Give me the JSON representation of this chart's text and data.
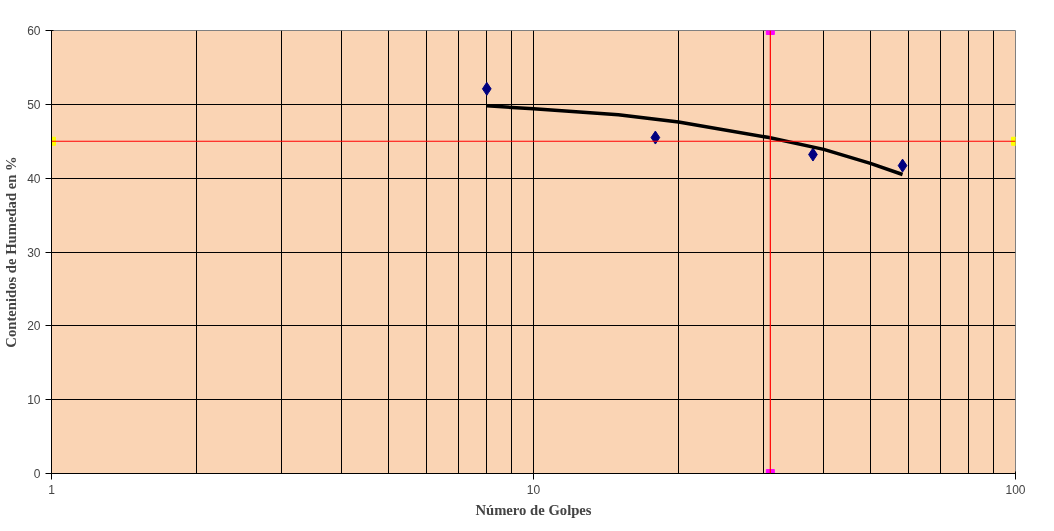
{
  "chart_data": {
    "type": "scatter",
    "xlabel": "Número de Golpes",
    "ylabel": "Contenidos de Humedad en %",
    "log": "x",
    "xlim": [
      1,
      100
    ],
    "xticks": [
      1,
      10,
      100
    ],
    "ylim": [
      0,
      60
    ],
    "yticks": [
      0,
      10,
      20,
      30,
      40,
      50,
      60
    ],
    "grid": true,
    "series": [
      {
        "marker": "diamond",
        "color": "#000080",
        "x": [
          8,
          17.9,
          38,
          58.3
        ],
        "values": [
          52.1,
          45.5,
          43.2,
          41.7
        ]
      },
      {
        "type": "line",
        "color": "#000000",
        "x": [
          8,
          10,
          15,
          20,
          30.8,
          40,
          50,
          58.3
        ],
        "values": [
          49.8,
          49.4,
          48.6,
          47.6,
          45.5,
          43.9,
          42,
          40.5
        ]
      },
      {
        "marker": "square",
        "color": "#ffff00",
        "x": [
          1,
          100
        ],
        "values": [
          45,
          45
        ]
      },
      {
        "marker": "square",
        "color": "#ff00ff",
        "x": [
          31,
          31
        ],
        "values": [
          0,
          60
        ]
      }
    ],
    "ref_lines": [
      {
        "axis": "y",
        "value": 45,
        "color": "#ff0000"
      },
      {
        "axis": "x",
        "value": 31,
        "color": "#ff0000"
      }
    ]
  }
}
